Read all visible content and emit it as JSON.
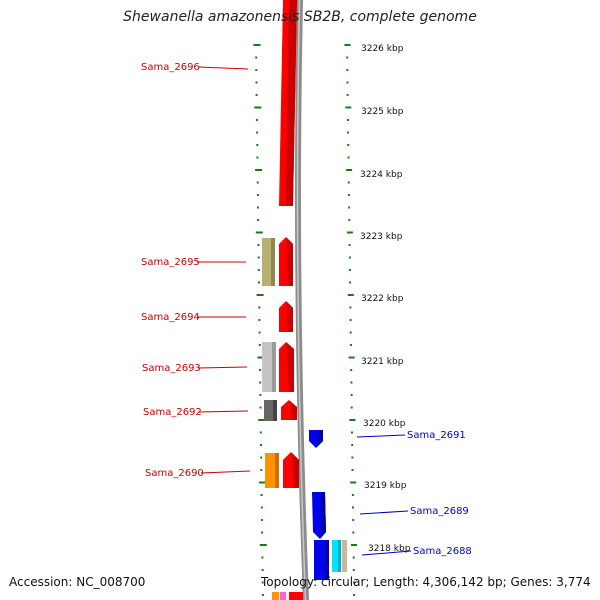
{
  "title": "Shewanella amazonensis SB2B, complete genome",
  "accession_text": "Accession: NC_008700",
  "summary_text": "Topology: circular; Length: 4,306,142 bp; Genes: 3,774",
  "colors": {
    "forward_gene": "#ff0000",
    "reverse_gene": "#0000ee",
    "tick": "#1a7a1a",
    "backbone": "#8c8c8c",
    "label_forward": "#cc0000",
    "label_reverse": "#0000cc"
  },
  "scale_labels": [
    "3226 kbp",
    "3225 kbp",
    "3224 kbp",
    "3223 kbp",
    "3222 kbp",
    "3221 kbp",
    "3220 kbp",
    "3219 kbp",
    "3218 kbp"
  ],
  "gene_labels": {
    "forward": [
      "Sama_2696",
      "Sama_2695",
      "Sama_2694",
      "Sama_2693",
      "Sama_2692",
      "Sama_2690"
    ],
    "reverse": [
      "Sama_2691",
      "Sama_2689",
      "Sama_2688"
    ]
  }
}
